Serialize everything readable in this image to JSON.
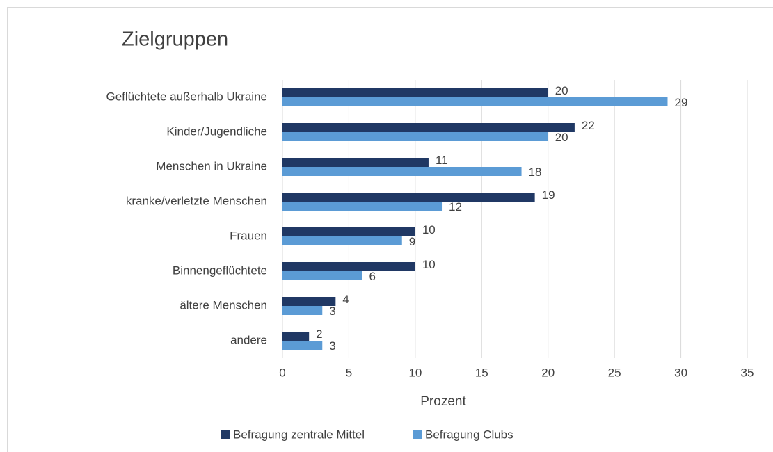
{
  "chart_data": {
    "type": "barh",
    "title": "Zielgruppen",
    "categories": [
      "Geflüchtete außerhalb Ukraine",
      "Kinder/Jugendliche",
      "Menschen in Ukraine",
      "kranke/verletzte Menschen",
      "Frauen",
      "Binnengeflüchtete",
      "ältere Menschen",
      "andere"
    ],
    "series": [
      {
        "name": "Befragung zentrale Mittel",
        "color": "#203864",
        "values": [
          20,
          22,
          11,
          19,
          10,
          10,
          4,
          2
        ]
      },
      {
        "name": "Befragung Clubs",
        "color": "#5b9bd5",
        "values": [
          29,
          20,
          18,
          12,
          9,
          6,
          3,
          3
        ]
      }
    ],
    "xlabel": "Prozent",
    "xlim": [
      0,
      35
    ],
    "xticks": [
      0,
      5,
      10,
      15,
      20,
      25,
      30,
      35
    ],
    "grid": true,
    "legend": "bottom"
  }
}
